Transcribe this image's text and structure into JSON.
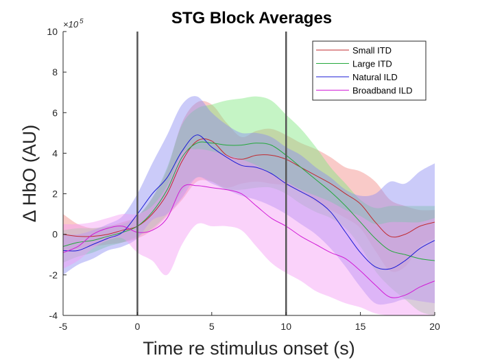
{
  "chart_data": {
    "type": "area",
    "title": "STG Block Averages",
    "xlabel": "Time re stimulus onset (s)",
    "ylabel": "Δ HbO (AU)",
    "exponent_label": "×10",
    "exponent_power": "5",
    "xlim": [
      -5,
      20
    ],
    "ylim": [
      -4,
      10
    ],
    "xticks": [
      "-5",
      "0",
      "5",
      "10",
      "15",
      "20"
    ],
    "yticks": [
      "-4",
      "-2",
      "0",
      "2",
      "4",
      "6",
      "8",
      "10"
    ],
    "vlines": [
      0,
      10
    ],
    "legend_position": "top-right",
    "series": [
      {
        "name": "Small ITD",
        "color": "#c0282e",
        "fill": "#f28a86",
        "x": [
          -5,
          -4,
          -3,
          -2,
          -1,
          0,
          1,
          2,
          3,
          4,
          5,
          6,
          7,
          8,
          9,
          10,
          11,
          12,
          13,
          14,
          15,
          16,
          17,
          18,
          19,
          20
        ],
        "mean": [
          0.0,
          -0.1,
          -0.1,
          0.0,
          0.2,
          0.4,
          1.0,
          2.0,
          3.6,
          4.6,
          4.6,
          3.9,
          3.7,
          3.9,
          3.9,
          3.7,
          3.3,
          2.9,
          2.5,
          2.0,
          1.5,
          0.6,
          -0.1,
          0.0,
          0.4,
          0.6
        ],
        "upper": [
          1.0,
          0.5,
          0.3,
          0.4,
          0.6,
          0.9,
          1.8,
          3.2,
          5.5,
          6.5,
          6.4,
          5.5,
          4.8,
          5.1,
          5.2,
          4.9,
          4.5,
          4.2,
          3.8,
          3.3,
          3.1,
          2.6,
          1.7,
          1.4,
          1.2,
          1.2
        ],
        "lower": [
          -0.8,
          -0.7,
          -0.6,
          -0.5,
          -0.4,
          -0.2,
          0.2,
          0.9,
          1.7,
          2.6,
          2.6,
          2.3,
          2.5,
          2.6,
          2.5,
          2.4,
          2.1,
          1.6,
          1.2,
          0.8,
          0.3,
          -0.8,
          -1.8,
          -1.6,
          -0.6,
          -0.2
        ]
      },
      {
        "name": "Large ITD",
        "color": "#22a83a",
        "fill": "#7fe67f",
        "x": [
          -5,
          -4,
          -3,
          -2,
          -1,
          0,
          1,
          2,
          3,
          4,
          5,
          6,
          7,
          8,
          9,
          10,
          11,
          12,
          13,
          14,
          15,
          16,
          17,
          18,
          19,
          20
        ],
        "mean": [
          -0.6,
          -0.4,
          -0.3,
          -0.1,
          0.1,
          0.4,
          1.1,
          2.2,
          3.8,
          4.5,
          4.5,
          4.4,
          4.4,
          4.5,
          4.4,
          3.9,
          3.3,
          2.7,
          2.1,
          1.4,
          0.6,
          -0.2,
          -0.8,
          -1.0,
          -1.2,
          -1.3
        ],
        "upper": [
          0.2,
          0.3,
          0.3,
          0.4,
          0.5,
          0.9,
          1.8,
          3.3,
          5.4,
          6.2,
          6.4,
          6.6,
          6.7,
          6.8,
          6.6,
          5.9,
          5.2,
          4.3,
          3.3,
          2.5,
          1.7,
          1.3,
          1.4,
          1.4,
          1.4,
          1.4
        ],
        "lower": [
          -1.4,
          -1.1,
          -0.9,
          -0.6,
          -0.4,
          -0.1,
          0.3,
          1.0,
          2.1,
          2.8,
          2.6,
          2.2,
          2.2,
          2.3,
          2.3,
          2.0,
          1.5,
          1.1,
          0.8,
          0.3,
          -0.6,
          -1.8,
          -2.6,
          -3.2,
          -3.8,
          -4.0
        ]
      },
      {
        "name": "Natural ILD",
        "color": "#1a1ad6",
        "fill": "#8c8cf2",
        "x": [
          -5,
          -4,
          -3,
          -2,
          -1,
          0,
          1,
          2,
          3,
          4,
          5,
          6,
          7,
          8,
          9,
          10,
          11,
          12,
          13,
          14,
          15,
          16,
          17,
          18,
          19,
          20
        ],
        "mean": [
          -0.8,
          -0.8,
          -0.5,
          -0.2,
          0.1,
          1.0,
          2.0,
          2.8,
          4.1,
          4.9,
          4.3,
          3.8,
          3.4,
          3.3,
          3.0,
          2.5,
          2.1,
          1.7,
          1.1,
          0.1,
          -0.9,
          -1.6,
          -1.7,
          -1.3,
          -0.7,
          -0.3
        ],
        "upper": [
          0.0,
          0.0,
          0.2,
          0.5,
          0.9,
          2.0,
          3.5,
          4.9,
          6.4,
          6.8,
          6.0,
          5.4,
          5.0,
          5.0,
          4.8,
          4.3,
          3.9,
          3.3,
          2.8,
          2.2,
          1.9,
          2.0,
          2.6,
          2.5,
          3.1,
          3.5
        ],
        "lower": [
          -2.0,
          -1.5,
          -1.2,
          -0.8,
          -0.6,
          -0.2,
          0.7,
          1.0,
          1.8,
          2.8,
          2.5,
          2.2,
          1.9,
          1.7,
          1.4,
          1.0,
          0.5,
          0.0,
          -0.7,
          -1.6,
          -2.6,
          -3.4,
          -3.4,
          -3.2,
          -3.3,
          -3.4
        ]
      },
      {
        "name": "Broadband ILD",
        "color": "#d11ad6",
        "fill": "#f59cf5",
        "x": [
          -5,
          -4,
          -3,
          -2,
          -1,
          0,
          1,
          2,
          3,
          4,
          5,
          6,
          7,
          8,
          9,
          10,
          11,
          12,
          13,
          14,
          15,
          16,
          17,
          18,
          19,
          20
        ],
        "mean": [
          -0.9,
          -0.6,
          0.0,
          0.3,
          0.4,
          0.1,
          0.2,
          0.8,
          2.3,
          2.4,
          2.3,
          2.2,
          2.0,
          1.4,
          0.8,
          0.4,
          -0.1,
          -0.5,
          -0.9,
          -1.2,
          -1.8,
          -2.5,
          -3.1,
          -3.0,
          -2.6,
          -2.3
        ],
        "upper": [
          0.5,
          0.5,
          0.6,
          0.8,
          1.0,
          1.0,
          1.4,
          2.4,
          4.0,
          4.2,
          4.1,
          3.9,
          3.7,
          3.4,
          3.0,
          2.6,
          2.2,
          1.9,
          1.6,
          1.2,
          0.9,
          0.5,
          0.6,
          0.6,
          0.6,
          0.8
        ],
        "lower": [
          -1.7,
          -1.3,
          -0.7,
          -0.3,
          -0.2,
          -0.9,
          -1.3,
          -2.0,
          -0.5,
          0.5,
          0.4,
          0.4,
          0.2,
          -0.6,
          -1.4,
          -1.9,
          -2.3,
          -2.8,
          -3.1,
          -3.4,
          -3.6,
          -3.9,
          -4.0,
          -4.0,
          -4.0,
          -4.0
        ]
      }
    ]
  }
}
